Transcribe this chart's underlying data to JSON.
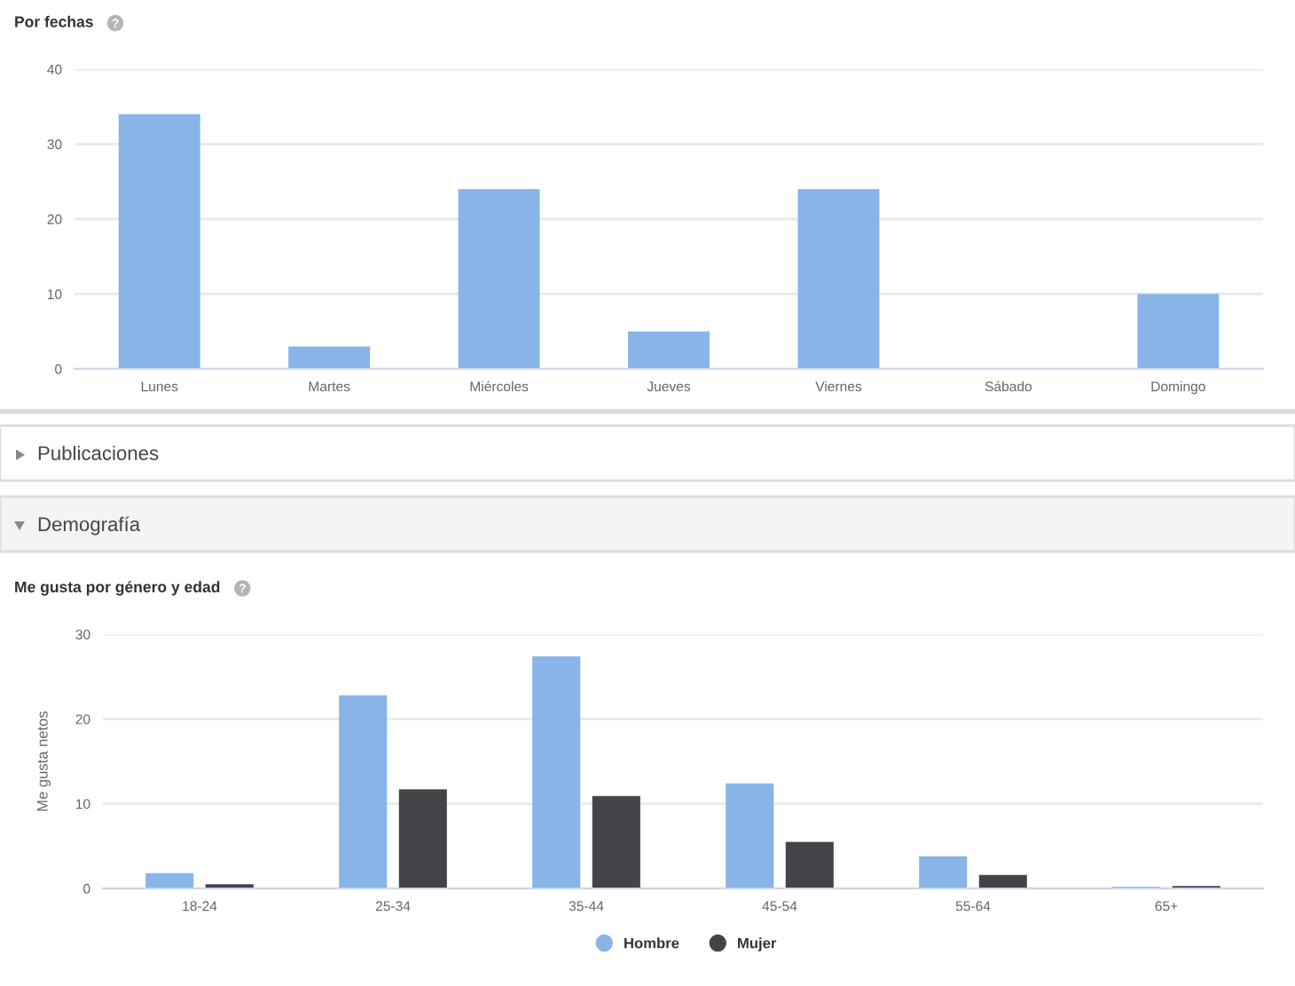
{
  "chart_data": [
    {
      "type": "bar",
      "title": "Por fechas",
      "categories": [
        "Lunes",
        "Martes",
        "Miércoles",
        "Jueves",
        "Viernes",
        "Sábado",
        "Domingo"
      ],
      "series": [
        {
          "color": "#88b4e7",
          "values": [
            34,
            3,
            24,
            5,
            24,
            0,
            10
          ]
        }
      ],
      "ylim": [
        0,
        40
      ],
      "yticks": [
        0,
        10,
        20,
        30,
        40
      ],
      "grid": "y"
    },
    {
      "type": "other",
      "annotations": [
        "Publicaciones",
        "Demografía"
      ]
    },
    {
      "type": "bar",
      "title": "Me gusta por género y edad",
      "ylabel": "Me gusta netos",
      "categories": [
        "18-24",
        "25-34",
        "35-44",
        "45-54",
        "55-64",
        "65+"
      ],
      "series": [
        {
          "name": "Hombre",
          "color": "#88b4e7",
          "values": [
            1.8,
            22.8,
            27.4,
            12.4,
            3.8,
            0.2
          ]
        },
        {
          "name": "Mujer",
          "color": "#434348",
          "values": [
            0.5,
            11.7,
            10.9,
            5.5,
            1.6,
            0.3
          ]
        }
      ],
      "ylim": [
        0,
        30
      ],
      "yticks": [
        0,
        10,
        20,
        30
      ],
      "grid": "y",
      "legend": "bottom"
    }
  ]
}
